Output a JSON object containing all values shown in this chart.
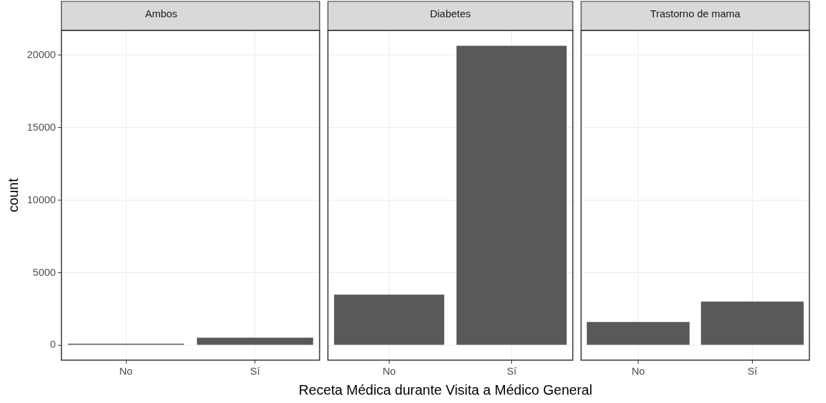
{
  "chart_data": [
    {
      "type": "bar",
      "title": "Ambos",
      "ylabel": "count",
      "categories": [
        "No",
        "Sí"
      ],
      "values": [
        100,
        520
      ],
      "color": "#595959",
      "ylim": [
        -1034,
        21714
      ],
      "yticks": [
        0,
        5000,
        10000,
        15000,
        20000
      ],
      "grid": true
    },
    {
      "type": "bar",
      "title": "Diabetes",
      "xlabel": "Receta Médica durante Visita a Médico General",
      "categories": [
        "No",
        "Sí"
      ],
      "values": [
        3490,
        20650
      ],
      "color": "#595959",
      "ylim": [
        -1034,
        21714
      ],
      "yticks": [
        0,
        5000,
        10000,
        15000,
        20000
      ],
      "grid": true,
      "tick_labels": "x"
    },
    {
      "type": "bar",
      "title": "Trastorno de mama",
      "categories": [
        "No",
        "Sí"
      ],
      "values": [
        1600,
        3010
      ],
      "color": "#595959",
      "ylim": [
        -1034,
        21714
      ],
      "yticks": [
        0,
        5000,
        10000,
        15000,
        20000
      ],
      "grid": true,
      "tick_labels": "x"
    }
  ]
}
